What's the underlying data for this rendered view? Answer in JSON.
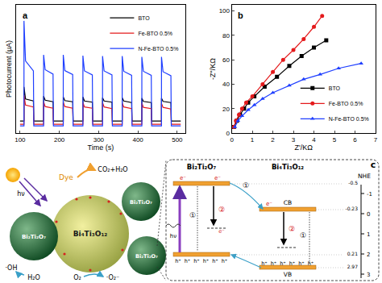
{
  "chart_data": [
    {
      "type": "line",
      "annotations": [
        "a"
      ],
      "xlabel": "Time (s)",
      "ylabel": "Photocurrent (μA)",
      "x": [
        100,
        110,
        110,
        114,
        134,
        135,
        159,
        160,
        160,
        164,
        184,
        185,
        209,
        210,
        210,
        214,
        234,
        235,
        259,
        260,
        260,
        264,
        284,
        285,
        309,
        310,
        310,
        314,
        334,
        335,
        359,
        360,
        360,
        364,
        384,
        385,
        409,
        410,
        410,
        414,
        434,
        435,
        459,
        460,
        460,
        464,
        484,
        485,
        509
      ],
      "series": [
        {
          "name": "BTO",
          "color": "#000000",
          "values": [
            0.3,
            0.3,
            1.15,
            0.85,
            0.8,
            0.3,
            0.3,
            0.3,
            0.92,
            0.82,
            0.78,
            0.3,
            0.3,
            0.3,
            0.9,
            0.81,
            0.78,
            0.3,
            0.3,
            0.3,
            0.9,
            0.8,
            0.77,
            0.3,
            0.3,
            0.3,
            0.88,
            0.8,
            0.77,
            0.3,
            0.3,
            0.3,
            0.88,
            0.8,
            0.76,
            0.3,
            0.3,
            0.3,
            0.87,
            0.79,
            0.76,
            0.3,
            0.3,
            0.3,
            0.87,
            0.79,
            0.76,
            0.3,
            0.3
          ]
        },
        {
          "name": "Fe-BTO 0.5%",
          "color": "#e41a1c",
          "values": [
            0.22,
            0.22,
            0.95,
            0.7,
            0.65,
            0.22,
            0.22,
            0.22,
            0.78,
            0.66,
            0.62,
            0.22,
            0.22,
            0.22,
            0.77,
            0.66,
            0.62,
            0.22,
            0.22,
            0.22,
            0.76,
            0.65,
            0.62,
            0.22,
            0.22,
            0.22,
            0.76,
            0.65,
            0.61,
            0.22,
            0.22,
            0.22,
            0.75,
            0.65,
            0.61,
            0.22,
            0.22,
            0.22,
            0.75,
            0.64,
            0.61,
            0.22,
            0.22,
            0.22,
            0.74,
            0.64,
            0.6,
            0.22,
            0.22
          ]
        },
        {
          "name": "N-Fe-BTO 0.5%",
          "color": "#1f3fff",
          "values": [
            0.18,
            0.18,
            2.8,
            1.8,
            1.55,
            0.18,
            0.18,
            0.18,
            1.95,
            1.58,
            1.47,
            0.18,
            0.18,
            0.18,
            1.95,
            1.56,
            1.46,
            0.18,
            0.18,
            0.18,
            1.93,
            1.55,
            1.45,
            0.18,
            0.18,
            0.18,
            1.92,
            1.55,
            1.45,
            0.18,
            0.18,
            0.18,
            1.92,
            1.54,
            1.44,
            0.18,
            0.18,
            0.18,
            1.9,
            1.54,
            1.44,
            0.18,
            0.18,
            0.18,
            1.9,
            1.53,
            1.43,
            0.18,
            0.18
          ]
        }
      ],
      "xlim": [
        90,
        520
      ],
      "xticks": [
        100,
        200,
        300,
        400,
        500
      ],
      "ylim": [
        0,
        3.2
      ],
      "tick_labels": "x",
      "grid": false,
      "legend": "upper right"
    },
    {
      "type": "scatter",
      "annotations": [
        "b"
      ],
      "xlabel": "Z'/KΩ",
      "ylabel": "-Z''/KΩ",
      "series": [
        {
          "name": "BTO",
          "color": "#000000",
          "marker": "square",
          "line_style": "solid",
          "x": [
            0.1,
            0.25,
            0.4,
            0.6,
            0.8,
            1.1,
            1.6,
            2.2,
            2.8,
            3.4,
            4.0,
            4.6
          ],
          "values": [
            5,
            10,
            15,
            20,
            25,
            30,
            38,
            46,
            55,
            63,
            70,
            76
          ]
        },
        {
          "name": "Fe-BTO 0.5%",
          "color": "#e41a1c",
          "marker": "circle",
          "line_style": "solid",
          "x": [
            0.1,
            0.2,
            0.35,
            0.5,
            0.7,
            1.0,
            1.5,
            2.0,
            2.5,
            3.0,
            3.5,
            4.0,
            4.4
          ],
          "values": [
            5,
            10,
            15,
            20,
            25,
            30,
            40,
            50,
            60,
            68,
            77,
            87,
            96
          ]
        },
        {
          "name": "N-Fe-BTO 0.5%",
          "color": "#1f3fff",
          "marker": "triangle",
          "line_style": "solid",
          "x": [
            0.15,
            0.3,
            0.5,
            0.8,
            1.1,
            1.5,
            2.0,
            2.8,
            3.5,
            4.3,
            5.2,
            6.3
          ],
          "values": [
            5,
            10,
            14,
            19,
            23,
            28,
            33,
            39,
            44,
            48,
            53,
            57
          ]
        }
      ],
      "xlim": [
        0,
        7
      ],
      "xticks": [
        0,
        1,
        2,
        3,
        4,
        5,
        6,
        7
      ],
      "ylim": [
        0,
        105
      ],
      "yticks": [
        0,
        20,
        40,
        60,
        80,
        100
      ],
      "grid": false,
      "legend": "lower right"
    }
  ],
  "diagram": {
    "label": "c",
    "sun_label": "hν",
    "dye": "Dye",
    "products": "CO₂+H₂O",
    "hydroxyl": "·OH",
    "water": "H₂O",
    "oxygen": "O₂",
    "superoxide": "·O₂⁻",
    "small_particle": "Bi₂Ti₂O₇",
    "large_particle": "Bi₄Ti₃O₁₂",
    "inset": {
      "left_title": "Bi₂Ti₂O₇",
      "right_title": "Bi₄Ti₃O₁₂",
      "excitation": "hν",
      "cb": "CB",
      "vb": "VB",
      "electron": "e⁻",
      "hole": "h⁺",
      "path1": "①",
      "path2": "②",
      "scale_title": "NHE",
      "scale_ticks": [
        "-1",
        "0",
        "1",
        "2",
        "3"
      ],
      "levels": [
        "-0.5",
        "-0.23",
        "0.21",
        "2.97"
      ]
    }
  }
}
